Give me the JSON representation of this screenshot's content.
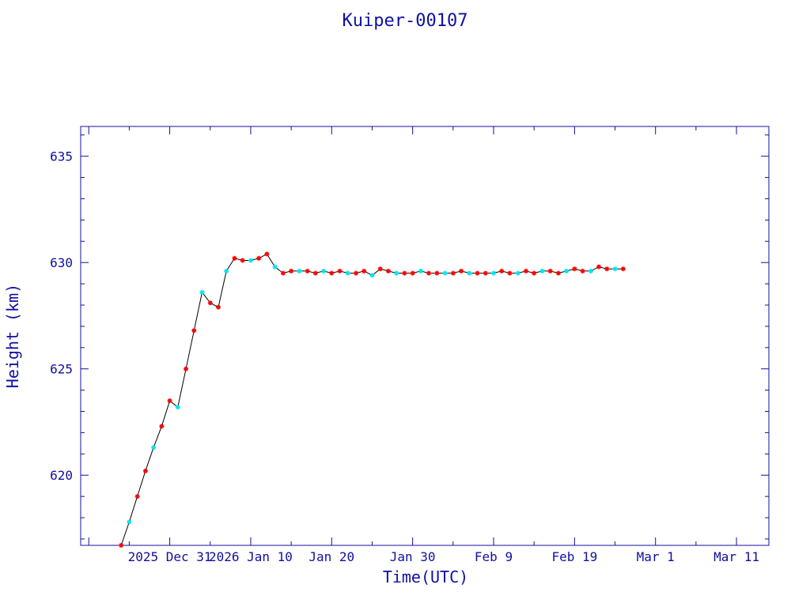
{
  "chart_data": {
    "type": "line",
    "title": "Kuiper-00107",
    "xlabel": "Time(UTC)",
    "ylabel": "Height (km)",
    "x_tick_labels": [
      "2025 Dec 31",
      "2026 Jan 10",
      "Jan 20",
      "Jan 30",
      "Feb  9",
      "Feb 19",
      "Mar  1",
      "Mar 11"
    ],
    "x_tick_dates": [
      "2025-12-31",
      "2026-01-10",
      "2026-01-20",
      "2026-01-30",
      "2026-02-09",
      "2026-02-19",
      "2026-03-01",
      "2026-03-11"
    ],
    "x_range": [
      "2025-12-20",
      "2026-03-15"
    ],
    "y_ticks": [
      620,
      625,
      630,
      635
    ],
    "ylim": [
      616.7,
      636.4
    ],
    "grid": false,
    "colors": {
      "axes": "#1010a0",
      "line": "#000000",
      "marker_a": "#ff0000",
      "marker_b": "#00e5ee"
    },
    "series": [
      {
        "x": [
          "2025-12-25",
          "2025-12-26",
          "2025-12-27",
          "2025-12-28",
          "2025-12-29",
          "2025-12-30",
          "2025-12-31",
          "2026-01-01",
          "2026-01-02",
          "2026-01-03",
          "2026-01-04",
          "2026-01-05",
          "2026-01-06",
          "2026-01-07",
          "2026-01-08",
          "2026-01-09",
          "2026-01-10",
          "2026-01-11",
          "2026-01-12",
          "2026-01-13",
          "2026-01-14",
          "2026-01-15",
          "2026-01-16",
          "2026-01-17",
          "2026-01-18",
          "2026-01-19",
          "2026-01-20",
          "2026-01-21",
          "2026-01-22",
          "2026-01-23",
          "2026-01-24",
          "2026-01-25",
          "2026-01-26",
          "2026-01-27",
          "2026-01-28",
          "2026-01-29",
          "2026-01-30",
          "2026-01-31",
          "2026-02-01",
          "2026-02-02",
          "2026-02-03",
          "2026-02-04",
          "2026-02-05",
          "2026-02-06",
          "2026-02-07",
          "2026-02-08",
          "2026-02-09",
          "2026-02-10",
          "2026-02-11",
          "2026-02-12",
          "2026-02-13",
          "2026-02-14",
          "2026-02-15",
          "2026-02-16",
          "2026-02-17",
          "2026-02-18",
          "2026-02-19",
          "2026-02-20",
          "2026-02-21",
          "2026-02-22",
          "2026-02-23",
          "2026-02-24",
          "2026-02-25"
        ],
        "y": [
          616.7,
          617.8,
          619.0,
          620.2,
          621.3,
          622.3,
          623.5,
          623.2,
          625.0,
          626.8,
          628.6,
          628.1,
          627.9,
          629.6,
          630.2,
          630.1,
          630.1,
          630.2,
          630.4,
          629.8,
          629.5,
          629.6,
          629.6,
          629.6,
          629.5,
          629.6,
          629.5,
          629.6,
          629.5,
          629.5,
          629.6,
          629.4,
          629.7,
          629.6,
          629.5,
          629.5,
          629.5,
          629.6,
          629.5,
          629.5,
          629.5,
          629.5,
          629.6,
          629.5,
          629.5,
          629.5,
          629.5,
          629.6,
          629.5,
          629.5,
          629.6,
          629.5,
          629.6,
          629.6,
          629.5,
          629.6,
          629.7,
          629.6,
          629.6,
          629.8,
          629.7,
          629.7,
          629.7
        ]
      }
    ]
  }
}
